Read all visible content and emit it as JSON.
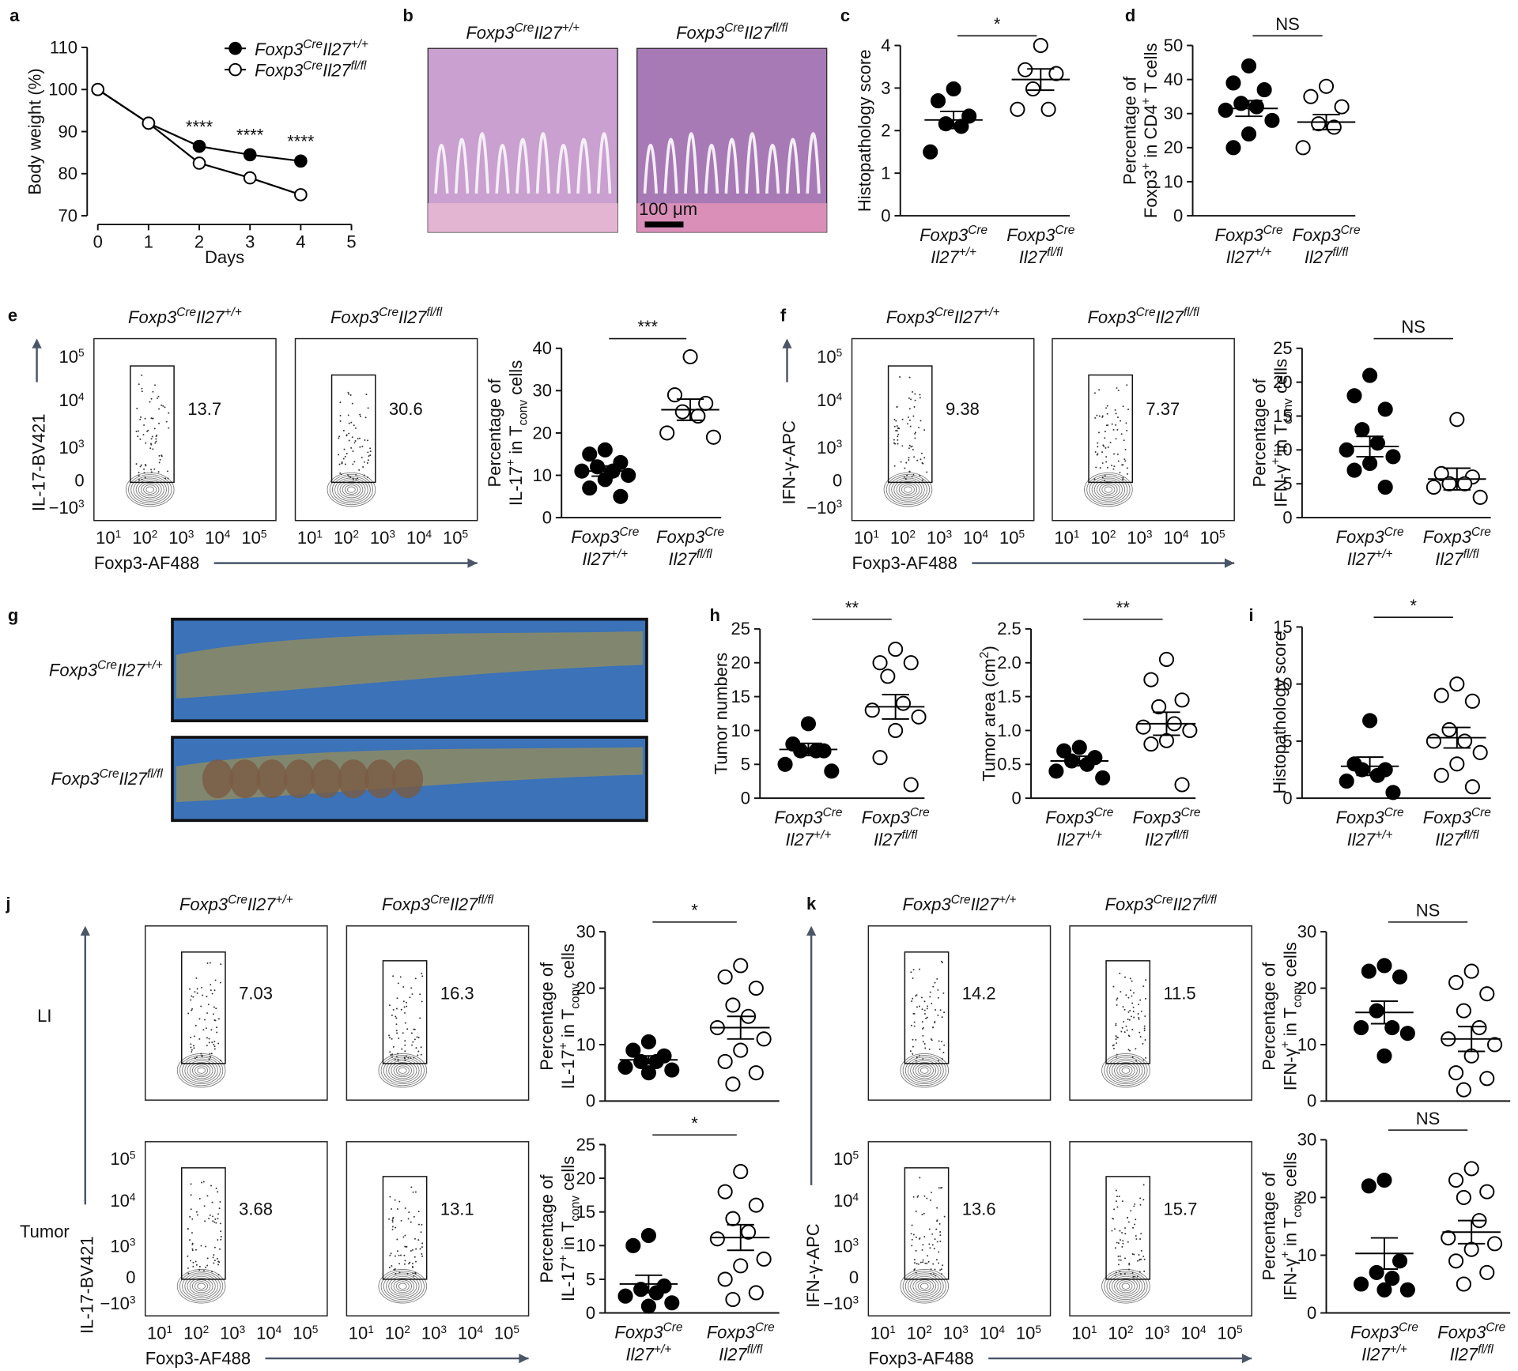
{
  "genotypes": [
    [
      {
        "text": "Foxp3"
      },
      {
        "text": "Cre",
        "sup": true
      },
      {
        "text": "Il27"
      },
      {
        "text": "+/+",
        "sup": true
      }
    ],
    [
      {
        "text": "Foxp3"
      },
      {
        "text": "Cre",
        "sup": true
      },
      {
        "text": "Il27"
      },
      {
        "text": "fl/fl",
        "sup": true
      }
    ]
  ],
  "panel_letters": [
    "a",
    "b",
    "c",
    "d",
    "e",
    "f",
    "g",
    "h",
    "i",
    "j",
    "k"
  ],
  "histology": {
    "scale_bar": "100 μm"
  },
  "flow_axes": {
    "xlabel": "Foxp3-AF488",
    "xticks": [
      [
        {
          "text": "10"
        },
        {
          "text": "1",
          "sup": true
        }
      ],
      [
        {
          "text": "10"
        },
        {
          "text": "2",
          "sup": true
        }
      ],
      [
        {
          "text": "10"
        },
        {
          "text": "3",
          "sup": true
        }
      ],
      [
        {
          "text": "10"
        },
        {
          "text": "4",
          "sup": true
        }
      ],
      [
        {
          "text": "10"
        },
        {
          "text": "5",
          "sup": true
        }
      ]
    ],
    "yticks": [
      [
        {
          "text": "10"
        },
        {
          "text": "5",
          "sup": true
        }
      ],
      [
        {
          "text": "10"
        },
        {
          "text": "4",
          "sup": true
        }
      ],
      [
        {
          "text": "10"
        },
        {
          "text": "3",
          "sup": true
        }
      ],
      [
        {
          "text": "0"
        }
      ],
      [
        {
          "text": "−10"
        },
        {
          "text": "3",
          "sup": true
        }
      ]
    ]
  },
  "flow_panels": [
    {
      "ylabel": "IL-17-BV421",
      "gates": [
        [
          13.7,
          30.6
        ]
      ]
    },
    {
      "ylabel": "IFN-γ-APC",
      "gates": [
        [
          9.38,
          7.37
        ]
      ]
    },
    {
      "ylabel": "IL-17-BV421",
      "row_labels": [
        "LI",
        "Tumor"
      ],
      "gates": [
        [
          7.03,
          16.3
        ],
        [
          3.68,
          13.1
        ]
      ]
    },
    {
      "ylabel": "IFN-γ-APC",
      "gates": [
        [
          14.2,
          11.5
        ],
        [
          13.6,
          15.7
        ]
      ]
    }
  ],
  "chart_data": [
    {
      "type": "line",
      "xlabel": "Days",
      "ylabel": "Body weight (%)",
      "x": [
        0,
        1,
        2,
        3,
        4
      ],
      "xlim": [
        0,
        5
      ],
      "xticks": [
        0,
        1,
        2,
        3,
        4,
        5
      ],
      "ylim": [
        70,
        110
      ],
      "yticks": [
        70,
        80,
        90,
        100,
        110
      ],
      "annotations": [
        {
          "text": "****",
          "x": 2
        },
        {
          "text": "****",
          "x": 3
        },
        {
          "text": "****",
          "x": 4
        }
      ],
      "series": [
        {
          "color": "#000000",
          "filled": true,
          "values": [
            100,
            92,
            86.5,
            84.5,
            83
          ]
        },
        {
          "color": "#000000",
          "filled": false,
          "values": [
            100,
            92,
            82.5,
            79,
            75
          ]
        }
      ]
    },
    {
      "type": "dot",
      "ylabel": [
        [
          {
            "text": "Histopathology score"
          }
        ]
      ],
      "ylim": [
        0,
        4
      ],
      "yticks": [
        0,
        1,
        2,
        3,
        4
      ],
      "annotation": "*",
      "series": [
        {
          "color": "#000000",
          "filled": true,
          "values": [
            2.98,
            2.7,
            2.34,
            2.16,
            2.1,
            1.5
          ],
          "mean": 2.25,
          "sem": 0.2
        },
        {
          "color": "#000000",
          "filled": false,
          "values": [
            4.0,
            3.43,
            3.34,
            2.98,
            2.5,
            2.5
          ],
          "mean": 3.2,
          "sem": 0.25
        }
      ]
    },
    {
      "type": "dot",
      "ylabel": [
        [
          {
            "text": "Percentage of"
          }
        ],
        [
          {
            "text": "Foxp3"
          },
          {
            "text": "+",
            "sup": true
          },
          {
            "text": " in CD4"
          },
          {
            "text": "+",
            "sup": true
          },
          {
            "text": " T cells"
          }
        ]
      ],
      "ylim": [
        0,
        50
      ],
      "yticks": [
        0,
        10,
        20,
        30,
        40,
        50
      ],
      "annotation": "NS",
      "series": [
        {
          "color": "#000000",
          "filled": true,
          "values": [
            44,
            39,
            37,
            33,
            32,
            31,
            28,
            24,
            20
          ],
          "mean": 31.5,
          "sem": 2.3
        },
        {
          "color": "#000000",
          "filled": false,
          "values": [
            38,
            35,
            32,
            27,
            26,
            20
          ],
          "mean": 27.5,
          "sem": 2.2
        }
      ]
    },
    {
      "type": "dot",
      "ylabel": [
        [
          {
            "text": "Percentage of"
          }
        ],
        [
          {
            "text": "IL-17"
          },
          {
            "text": "+",
            "sup": true
          },
          {
            "text": " in T"
          },
          {
            "text": "conv",
            "sub": true
          },
          {
            "text": " cells"
          }
        ]
      ],
      "ylim": [
        0,
        40
      ],
      "yticks": [
        0,
        10,
        20,
        30,
        40
      ],
      "annotation": "***",
      "series": [
        {
          "color": "#000000",
          "filled": true,
          "values": [
            16,
            15,
            13,
            12,
            11,
            11,
            10,
            9,
            7,
            5
          ],
          "mean": 11,
          "sem": 1.2
        },
        {
          "color": "#000000",
          "filled": false,
          "values": [
            38,
            29,
            27,
            25,
            24,
            20,
            19
          ],
          "mean": 25.5,
          "sem": 2.5
        }
      ]
    },
    {
      "type": "dot",
      "ylabel": [
        [
          {
            "text": "Percentage of"
          }
        ],
        [
          {
            "text": "IFN-γ"
          },
          {
            "text": "+",
            "sup": true
          },
          {
            "text": " in T"
          },
          {
            "text": "conv",
            "sub": true
          },
          {
            "text": " cells"
          }
        ]
      ],
      "ylim": [
        0,
        25
      ],
      "yticks": [
        0,
        5,
        10,
        15,
        20,
        25
      ],
      "annotation": "NS",
      "series": [
        {
          "color": "#000000",
          "filled": true,
          "values": [
            21,
            18,
            16,
            13,
            11,
            10,
            9,
            8,
            7,
            4.5
          ],
          "mean": 10.5,
          "sem": 1.5
        },
        {
          "color": "#000000",
          "filled": false,
          "values": [
            14.5,
            6.5,
            6,
            5,
            5,
            4.5,
            3
          ],
          "mean": 5.7,
          "sem": 1.6
        }
      ]
    },
    {
      "type": "dot",
      "ylabel": [
        [
          {
            "text": "Tumor numbers"
          }
        ]
      ],
      "ylim": [
        0,
        25
      ],
      "yticks": [
        0,
        5,
        10,
        15,
        20,
        25
      ],
      "annotation": "**",
      "series": [
        {
          "color": "#000000",
          "filled": true,
          "values": [
            11,
            8,
            7,
            7,
            7,
            5,
            4
          ],
          "mean": 7.2,
          "sem": 0.9
        },
        {
          "color": "#000000",
          "filled": false,
          "values": [
            22,
            20,
            20,
            18,
            14,
            13,
            12,
            10,
            6,
            2
          ],
          "mean": 13.5,
          "sem": 1.8
        }
      ]
    },
    {
      "type": "dot",
      "ylabel": [
        [
          {
            "text": "Tumor area (cm"
          },
          {
            "text": "2",
            "sup": true
          },
          {
            "text": ")"
          }
        ]
      ],
      "ylim": [
        0,
        2.5
      ],
      "yticks": [
        0,
        0.5,
        {
          "value": 1,
          "label": "1.0"
        },
        1.5,
        {
          "value": 2,
          "label": "2.0"
        },
        2.5
      ],
      "annotation": "**",
      "series": [
        {
          "color": "#000000",
          "filled": true,
          "values": [
            0.75,
            0.7,
            0.6,
            0.55,
            0.5,
            0.4,
            0.3
          ],
          "mean": 0.55,
          "sem": 0.07
        },
        {
          "color": "#000000",
          "filled": false,
          "values": [
            2.05,
            1.75,
            1.45,
            1.35,
            1.1,
            1.05,
            1.0,
            0.85,
            0.8,
            0.2
          ],
          "mean": 1.1,
          "sem": 0.17
        }
      ]
    },
    {
      "type": "dot",
      "ylabel": [
        [
          {
            "text": "Histopathology score"
          }
        ]
      ],
      "ylim": [
        0,
        15
      ],
      "yticks": [
        0,
        5,
        10,
        15
      ],
      "annotation": "*",
      "series": [
        {
          "color": "#000000",
          "filled": true,
          "values": [
            6.8,
            3,
            2.5,
            2.5,
            2,
            1.5,
            0.5
          ],
          "mean": 2.8,
          "sem": 0.8
        },
        {
          "color": "#000000",
          "filled": false,
          "values": [
            10,
            9,
            8.5,
            6,
            5,
            5,
            4,
            3,
            2,
            1
          ],
          "mean": 5.3,
          "sem": 0.9
        }
      ]
    },
    {
      "type": "dot",
      "ylabel": [
        [
          {
            "text": "Percentage of"
          }
        ],
        [
          {
            "text": "IL-17"
          },
          {
            "text": "+",
            "sup": true
          },
          {
            "text": " in T"
          },
          {
            "text": "conv",
            "sub": true
          },
          {
            "text": " cells"
          }
        ]
      ],
      "ylim": [
        0,
        30
      ],
      "yticks": [
        0,
        10,
        20,
        30
      ],
      "annotation": "*",
      "series": [
        {
          "color": "#000000",
          "filled": true,
          "values": [
            10.5,
            9,
            8,
            7,
            7,
            6,
            5.5,
            5
          ],
          "mean": 7.3,
          "sem": 0.7
        },
        {
          "color": "#000000",
          "filled": false,
          "values": [
            24,
            22,
            20,
            17,
            15,
            13,
            11,
            9,
            7,
            5,
            3
          ],
          "mean": 13,
          "sem": 2
        }
      ]
    },
    {
      "type": "dot",
      "ylabel": [
        [
          {
            "text": "Percentage of"
          }
        ],
        [
          {
            "text": "IL-17"
          },
          {
            "text": "+",
            "sup": true
          },
          {
            "text": " in T"
          },
          {
            "text": "conv",
            "sub": true
          },
          {
            "text": " cells"
          }
        ]
      ],
      "ylim": [
        0,
        25
      ],
      "yticks": [
        0,
        5,
        10,
        15,
        20,
        25
      ],
      "annotation": "*",
      "series": [
        {
          "color": "#000000",
          "filled": true,
          "values": [
            11.5,
            10,
            4,
            3.5,
            3,
            2.5,
            1.5,
            1
          ],
          "mean": 4.3,
          "sem": 1.3
        },
        {
          "color": "#000000",
          "filled": false,
          "values": [
            21,
            18,
            16,
            14,
            12,
            11,
            8,
            7,
            5,
            3,
            2
          ],
          "mean": 11.2,
          "sem": 1.9
        }
      ]
    },
    {
      "type": "dot",
      "ylabel": [
        [
          {
            "text": "Percentage of"
          }
        ],
        [
          {
            "text": "IFN-γ"
          },
          {
            "text": "+",
            "sup": true
          },
          {
            "text": " in T"
          },
          {
            "text": "conv",
            "sub": true
          },
          {
            "text": " cells"
          }
        ]
      ],
      "ylim": [
        0,
        30
      ],
      "yticks": [
        0,
        10,
        20,
        30
      ],
      "annotation": "NS",
      "series": [
        {
          "color": "#000000",
          "filled": true,
          "values": [
            24,
            23,
            22,
            16,
            13,
            13,
            12,
            8
          ],
          "mean": 15.7,
          "sem": 2
        },
        {
          "color": "#000000",
          "filled": false,
          "values": [
            23,
            21,
            19,
            16,
            13,
            11,
            10,
            8,
            5,
            4,
            2
          ],
          "mean": 11,
          "sem": 2.2
        }
      ]
    },
    {
      "type": "dot",
      "ylabel": [
        [
          {
            "text": "Percentage of"
          }
        ],
        [
          {
            "text": "IFN-γ"
          },
          {
            "text": "+",
            "sup": true
          },
          {
            "text": " in T"
          },
          {
            "text": "conv",
            "sub": true
          },
          {
            "text": " cells"
          }
        ]
      ],
      "ylim": [
        0,
        30
      ],
      "yticks": [
        0,
        10,
        20,
        30
      ],
      "annotation": "NS",
      "series": [
        {
          "color": "#000000",
          "filled": true,
          "values": [
            23,
            22,
            9,
            7,
            6,
            5,
            4,
            4
          ],
          "mean": 10.3,
          "sem": 2.7
        },
        {
          "color": "#000000",
          "filled": false,
          "values": [
            25,
            23,
            21,
            20,
            16,
            13,
            12,
            11,
            9,
            7,
            5
          ],
          "mean": 14,
          "sem": 2
        }
      ]
    }
  ]
}
